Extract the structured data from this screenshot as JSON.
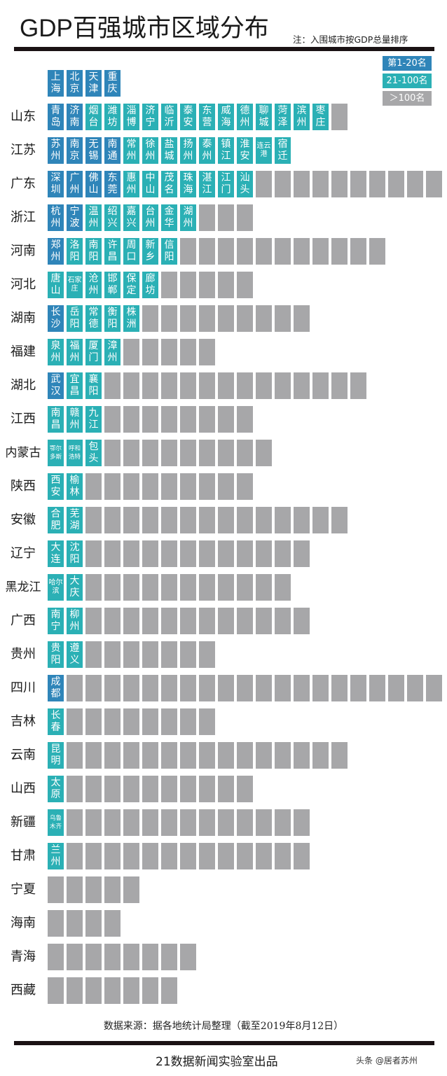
{
  "header": {
    "title": "GDP百强城市区域分布",
    "note": "注：入围城市按GDP总量排序"
  },
  "colors": {
    "top20": "#2f85b9",
    "top21_100": "#2bb0b5",
    "over100": "#a7a7a9"
  },
  "legend": [
    {
      "label": "第1-20名",
      "tier": "top20"
    },
    {
      "label": "21-100名",
      "tier": "top21_100"
    },
    {
      "label": "＞100名",
      "tier": "over100"
    }
  ],
  "municipalities": [
    "上海",
    "北京",
    "天津",
    "重庆"
  ],
  "provinces": [
    {
      "name": "山东",
      "top20": [
        "青岛",
        "济南"
      ],
      "top21_100": [
        "烟台",
        "潍坊",
        "淄博",
        "济宁",
        "临沂",
        "泰安",
        "东营",
        "威海",
        "德州",
        "聊城",
        "菏泽",
        "滨州",
        "枣庄"
      ],
      "over100": 1
    },
    {
      "name": "江苏",
      "top20": [
        "苏州",
        "南京",
        "无锡",
        "南通"
      ],
      "top21_100": [
        "常州",
        "徐州",
        "盐城",
        "扬州",
        "泰州",
        "镇江",
        "淮安",
        "连云港",
        "宿迁"
      ],
      "over100": 0
    },
    {
      "name": "广东",
      "top20": [
        "深圳",
        "广州",
        "佛山",
        "东莞"
      ],
      "top21_100": [
        "惠州",
        "中山",
        "茂名",
        "珠海",
        "湛江",
        "江门",
        "汕头"
      ],
      "over100": 10
    },
    {
      "name": "浙江",
      "top20": [
        "杭州",
        "宁波"
      ],
      "top21_100": [
        "温州",
        "绍兴",
        "嘉兴",
        "台州",
        "金华",
        "湖州"
      ],
      "over100": 3
    },
    {
      "name": "河南",
      "top20": [
        "郑州"
      ],
      "top21_100": [
        "洛阳",
        "南阳",
        "许昌",
        "周口",
        "新乡",
        "信阳"
      ],
      "over100": 11
    },
    {
      "name": "河北",
      "top20": [],
      "top21_100": [
        "唐山",
        "石家庄",
        "沧州",
        "邯郸",
        "保定",
        "廊坊"
      ],
      "over100": 5
    },
    {
      "name": "湖南",
      "top20": [
        "长沙"
      ],
      "top21_100": [
        "岳阳",
        "常德",
        "衡阳",
        "株洲"
      ],
      "over100": 9
    },
    {
      "name": "福建",
      "top20": [],
      "top21_100": [
        "泉州",
        "福州",
        "厦门",
        "漳州"
      ],
      "over100": 5
    },
    {
      "name": "湖北",
      "top20": [
        "武汉"
      ],
      "top21_100": [
        "宜昌",
        "襄阳"
      ],
      "over100": 14
    },
    {
      "name": "江西",
      "top20": [],
      "top21_100": [
        "南昌",
        "赣州",
        "九江"
      ],
      "over100": 8
    },
    {
      "name": "内蒙古",
      "top20": [],
      "top21_100": [
        "鄂尔多斯",
        "呼和浩特",
        "包头"
      ],
      "over100": 9
    },
    {
      "name": "陕西",
      "top20": [],
      "top21_100": [
        "西安",
        "榆林"
      ],
      "over100": 9
    },
    {
      "name": "安徽",
      "top20": [],
      "top21_100": [
        "合肥",
        "芜湖"
      ],
      "over100": 14
    },
    {
      "name": "辽宁",
      "top20": [],
      "top21_100": [
        "大连",
        "沈阳"
      ],
      "over100": 12
    },
    {
      "name": "黑龙江",
      "top20": [],
      "top21_100": [
        "哈尔滨",
        "大庆"
      ],
      "over100": 11
    },
    {
      "name": "广西",
      "top20": [],
      "top21_100": [
        "南宁",
        "柳州"
      ],
      "over100": 12
    },
    {
      "name": "贵州",
      "top20": [],
      "top21_100": [
        "贵阳",
        "遵义"
      ],
      "over100": 7
    },
    {
      "name": "四川",
      "top20": [
        "成都"
      ],
      "top21_100": [],
      "over100": 20
    },
    {
      "name": "吉林",
      "top20": [],
      "top21_100": [
        "长春"
      ],
      "over100": 8
    },
    {
      "name": "云南",
      "top20": [],
      "top21_100": [
        "昆明"
      ],
      "over100": 15
    },
    {
      "name": "山西",
      "top20": [],
      "top21_100": [
        "太原"
      ],
      "over100": 10
    },
    {
      "name": "新疆",
      "top20": [],
      "top21_100": [
        "乌鲁木齐"
      ],
      "over100": 13
    },
    {
      "name": "甘肃",
      "top20": [],
      "top21_100": [
        "兰州"
      ],
      "over100": 13
    },
    {
      "name": "宁夏",
      "top20": [],
      "top21_100": [],
      "over100": 5
    },
    {
      "name": "海南",
      "top20": [],
      "top21_100": [],
      "over100": 4
    },
    {
      "name": "青海",
      "top20": [],
      "top21_100": [],
      "over100": 8
    },
    {
      "name": "西藏",
      "top20": [],
      "top21_100": [],
      "over100": 7
    }
  ],
  "footer": {
    "source": "数据来源：据各地统计局整理（截至2019年8月12日）",
    "credit": "21数据新闻实验室出品",
    "watermark": "头条 @居者苏州"
  }
}
